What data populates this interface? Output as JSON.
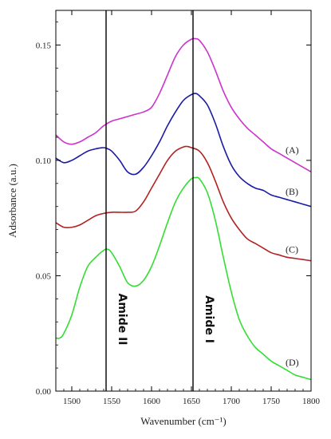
{
  "chart_data": {
    "type": "line",
    "title": "",
    "xlabel": "Wavenumber (cm⁻¹)",
    "ylabel": "Adsorbance (a.u.)",
    "xlim": [
      1480,
      1800
    ],
    "ylim": [
      0.0,
      0.165
    ],
    "x_ticks": [
      1500,
      1550,
      1600,
      1650,
      1700,
      1750,
      1800
    ],
    "y_ticks": [
      0.0,
      0.05,
      0.1,
      0.15
    ],
    "y_tick_labels": [
      "0.00",
      "0.05",
      "0.10",
      "0.15"
    ],
    "grid": false,
    "legend": "none",
    "vlines": [
      {
        "x": 1543,
        "label": "Amide II"
      },
      {
        "x": 1652,
        "label": "Amide I"
      }
    ],
    "series": [
      {
        "name": "(A)",
        "color": "#cc33cc",
        "x": [
          1480,
          1490,
          1500,
          1510,
          1520,
          1530,
          1540,
          1550,
          1560,
          1570,
          1580,
          1590,
          1600,
          1610,
          1620,
          1630,
          1640,
          1650,
          1655,
          1660,
          1670,
          1680,
          1690,
          1700,
          1710,
          1720,
          1730,
          1740,
          1750,
          1760,
          1770,
          1780,
          1790,
          1800
        ],
        "y": [
          0.111,
          0.108,
          0.107,
          0.108,
          0.11,
          0.112,
          0.115,
          0.117,
          0.118,
          0.119,
          0.12,
          0.121,
          0.123,
          0.129,
          0.137,
          0.145,
          0.15,
          0.1525,
          0.1527,
          0.152,
          0.147,
          0.139,
          0.13,
          0.123,
          0.118,
          0.114,
          0.111,
          0.108,
          0.105,
          0.103,
          0.101,
          0.099,
          0.097,
          0.095
        ]
      },
      {
        "name": "(B)",
        "color": "#1a1aa6",
        "x": [
          1480,
          1490,
          1500,
          1510,
          1520,
          1530,
          1540,
          1545,
          1550,
          1560,
          1570,
          1580,
          1590,
          1600,
          1610,
          1620,
          1630,
          1640,
          1650,
          1655,
          1660,
          1670,
          1680,
          1690,
          1700,
          1710,
          1720,
          1730,
          1740,
          1750,
          1760,
          1770,
          1780,
          1790,
          1800
        ],
        "y": [
          0.101,
          0.099,
          0.1,
          0.102,
          0.104,
          0.105,
          0.1055,
          0.105,
          0.104,
          0.1,
          0.095,
          0.094,
          0.097,
          0.102,
          0.108,
          0.115,
          0.121,
          0.126,
          0.1285,
          0.129,
          0.128,
          0.124,
          0.116,
          0.106,
          0.098,
          0.093,
          0.09,
          0.088,
          0.087,
          0.085,
          0.084,
          0.083,
          0.082,
          0.081,
          0.08
        ]
      },
      {
        "name": "(C)",
        "color": "#b22222",
        "x": [
          1480,
          1490,
          1500,
          1510,
          1520,
          1530,
          1540,
          1550,
          1560,
          1570,
          1580,
          1590,
          1600,
          1610,
          1620,
          1630,
          1640,
          1645,
          1650,
          1660,
          1670,
          1680,
          1690,
          1700,
          1710,
          1720,
          1730,
          1740,
          1750,
          1760,
          1770,
          1780,
          1790,
          1800
        ],
        "y": [
          0.073,
          0.071,
          0.071,
          0.072,
          0.074,
          0.076,
          0.077,
          0.0775,
          0.0775,
          0.0775,
          0.078,
          0.082,
          0.088,
          0.094,
          0.1,
          0.104,
          0.1058,
          0.106,
          0.1055,
          0.104,
          0.099,
          0.091,
          0.082,
          0.075,
          0.07,
          0.066,
          0.064,
          0.062,
          0.06,
          0.059,
          0.058,
          0.0575,
          0.057,
          0.0565
        ]
      },
      {
        "name": "(D)",
        "color": "#33dd33",
        "x": [
          1480,
          1485,
          1490,
          1500,
          1510,
          1520,
          1530,
          1540,
          1545,
          1550,
          1560,
          1570,
          1580,
          1590,
          1600,
          1610,
          1620,
          1630,
          1640,
          1650,
          1655,
          1660,
          1670,
          1680,
          1690,
          1700,
          1710,
          1720,
          1730,
          1740,
          1750,
          1760,
          1770,
          1780,
          1790,
          1800
        ],
        "y": [
          0.023,
          0.023,
          0.025,
          0.033,
          0.045,
          0.054,
          0.058,
          0.061,
          0.0615,
          0.06,
          0.054,
          0.047,
          0.0455,
          0.048,
          0.054,
          0.063,
          0.073,
          0.082,
          0.088,
          0.092,
          0.0925,
          0.092,
          0.086,
          0.074,
          0.058,
          0.043,
          0.031,
          0.024,
          0.019,
          0.016,
          0.013,
          0.011,
          0.009,
          0.007,
          0.006,
          0.005
        ]
      }
    ]
  }
}
